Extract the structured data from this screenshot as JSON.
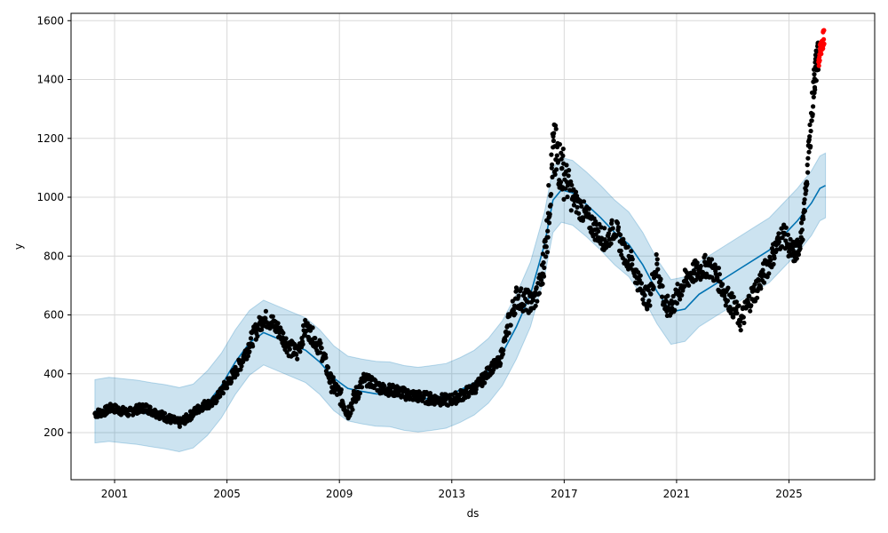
{
  "chart_data": {
    "type": "line",
    "title": "",
    "xlabel": "ds",
    "ylabel": "y",
    "xlim": [
      1999.45,
      2028.05
    ],
    "ylim": [
      40,
      1625
    ],
    "grid": true,
    "x_ticks": [
      {
        "value": 2001,
        "label": "2001"
      },
      {
        "value": 2005,
        "label": "2005"
      },
      {
        "value": 2009,
        "label": "2009"
      },
      {
        "value": 2013,
        "label": "2013"
      },
      {
        "value": 2017,
        "label": "2017"
      },
      {
        "value": 2021,
        "label": "2021"
      },
      {
        "value": 2025,
        "label": "2025"
      }
    ],
    "y_ticks": [
      {
        "value": 200,
        "label": "200"
      },
      {
        "value": 400,
        "label": "400"
      },
      {
        "value": 600,
        "label": "600"
      },
      {
        "value": 800,
        "label": "800"
      },
      {
        "value": 1000,
        "label": "1000"
      },
      {
        "value": 1200,
        "label": "1200"
      },
      {
        "value": 1400,
        "label": "1400"
      },
      {
        "value": 1600,
        "label": "1600"
      }
    ],
    "colors": {
      "observed": "#000000",
      "forecast": "#0072B2",
      "interval": "#0072B2",
      "recent": "#ff0000",
      "grid": "#d9d9d9"
    },
    "series": [
      {
        "role": "forecast",
        "x": [
          2000.3,
          2000.8,
          2001.3,
          2001.8,
          2002.3,
          2002.8,
          2003.3,
          2003.8,
          2004.3,
          2004.8,
          2005.3,
          2005.8,
          2006.3,
          2006.8,
          2007.3,
          2007.8,
          2008.3,
          2008.8,
          2009.3,
          2009.8,
          2010.3,
          2010.8,
          2011.3,
          2011.8,
          2012.3,
          2012.8,
          2013.3,
          2013.8,
          2014.3,
          2014.8,
          2015.3,
          2015.8,
          2016.3,
          2016.6,
          2016.9,
          2017.3,
          2017.8,
          2018.3,
          2018.8,
          2019.3,
          2019.8,
          2020.3,
          2020.8,
          2021.3,
          2021.8,
          2022.3,
          2022.8,
          2023.3,
          2023.8,
          2024.3,
          2024.8,
          2025.3,
          2025.8,
          2026.1,
          2026.3
        ],
        "yhat": [
          272,
          280,
          275,
          270,
          262,
          255,
          245,
          255,
          300,
          360,
          440,
          505,
          540,
          520,
          500,
          480,
          440,
          385,
          350,
          340,
          332,
          330,
          318,
          312,
          318,
          325,
          345,
          370,
          410,
          470,
          560,
          670,
          840,
          990,
          1025,
          1015,
          975,
          930,
          880,
          840,
          770,
          680,
          610,
          620,
          670,
          700,
          730,
          760,
          790,
          820,
          870,
          920,
          980,
          1030,
          1040
        ],
        "lower": [
          165,
          170,
          165,
          160,
          152,
          145,
          135,
          148,
          190,
          250,
          330,
          395,
          430,
          410,
          390,
          370,
          330,
          275,
          240,
          230,
          222,
          220,
          208,
          202,
          208,
          215,
          235,
          260,
          300,
          360,
          450,
          560,
          730,
          880,
          915,
          905,
          865,
          820,
          770,
          730,
          660,
          570,
          500,
          510,
          560,
          590,
          620,
          650,
          680,
          710,
          760,
          810,
          870,
          920,
          930
        ],
        "upper": [
          380,
          388,
          383,
          378,
          370,
          363,
          353,
          365,
          410,
          470,
          550,
          615,
          650,
          630,
          610,
          590,
          550,
          495,
          460,
          450,
          442,
          440,
          428,
          422,
          428,
          435,
          455,
          480,
          520,
          580,
          670,
          780,
          950,
          1100,
          1135,
          1125,
          1085,
          1040,
          990,
          950,
          880,
          790,
          720,
          730,
          780,
          810,
          840,
          870,
          900,
          930,
          980,
          1030,
          1090,
          1140,
          1150
        ]
      },
      {
        "role": "observed",
        "x": [
          2000.3,
          2000.6,
          2000.9,
          2001.2,
          2001.5,
          2001.8,
          2002.1,
          2002.4,
          2002.7,
          2003.0,
          2003.3,
          2003.6,
          2003.9,
          2004.2,
          2004.5,
          2004.8,
          2005.1,
          2005.4,
          2005.7,
          2006.0,
          2006.3,
          2006.6,
          2006.9,
          2007.2,
          2007.5,
          2007.8,
          2008.1,
          2008.4,
          2008.7,
          2009.0,
          2009.3,
          2009.6,
          2009.9,
          2010.2,
          2010.5,
          2010.8,
          2011.1,
          2011.4,
          2011.7,
          2012.0,
          2012.3,
          2012.6,
          2012.9,
          2013.2,
          2013.5,
          2013.8,
          2014.1,
          2014.4,
          2014.7,
          2015.0,
          2015.3,
          2015.6,
          2015.9,
          2016.2,
          2016.4,
          2016.6,
          2016.8,
          2017.0,
          2017.3,
          2017.6,
          2017.9,
          2018.2,
          2018.5,
          2018.8,
          2019.1,
          2019.4,
          2019.7,
          2020.0,
          2020.3,
          2020.6,
          2020.9,
          2021.2,
          2021.5,
          2021.8,
          2022.1,
          2022.4,
          2022.7,
          2023.0,
          2023.3,
          2023.6,
          2023.9,
          2024.2,
          2024.5,
          2024.8,
          2025.1,
          2025.3,
          2025.5,
          2025.7,
          2025.9,
          2026.0
        ],
        "y": [
          265,
          270,
          285,
          275,
          268,
          280,
          285,
          270,
          258,
          245,
          232,
          250,
          275,
          295,
          300,
          340,
          380,
          420,
          480,
          540,
          590,
          575,
          540,
          490,
          470,
          560,
          520,
          470,
          370,
          330,
          270,
          330,
          380,
          370,
          350,
          345,
          340,
          330,
          325,
          320,
          315,
          312,
          310,
          320,
          335,
          350,
          380,
          420,
          440,
          560,
          660,
          650,
          640,
          720,
          900,
          1150,
          1120,
          1080,
          1000,
          960,
          920,
          880,
          850,
          900,
          820,
          780,
          700,
          650,
          780,
          620,
          640,
          700,
          740,
          750,
          770,
          740,
          680,
          630,
          580,
          650,
          700,
          760,
          820,
          880,
          810,
          820,
          900,
          1150,
          1400,
          1470
        ],
        "amplitude": [
          15,
          15,
          15,
          15,
          15,
          15,
          15,
          15,
          15,
          15,
          15,
          15,
          15,
          15,
          15,
          20,
          20,
          25,
          30,
          30,
          30,
          30,
          30,
          30,
          30,
          30,
          30,
          30,
          30,
          30,
          30,
          30,
          20,
          20,
          20,
          20,
          20,
          20,
          20,
          20,
          20,
          20,
          20,
          20,
          20,
          20,
          20,
          20,
          20,
          40,
          40,
          40,
          40,
          60,
          90,
          110,
          90,
          60,
          40,
          40,
          40,
          40,
          40,
          40,
          40,
          40,
          40,
          40,
          40,
          40,
          40,
          40,
          40,
          40,
          40,
          40,
          40,
          40,
          40,
          40,
          40,
          40,
          40,
          40,
          40,
          40,
          40,
          60,
          60,
          60
        ]
      },
      {
        "role": "recent",
        "x": [
          2026.05,
          2026.08,
          2026.11,
          2026.14,
          2026.17,
          2026.2,
          2026.23
        ],
        "y": [
          1460,
          1480,
          1500,
          1510,
          1520,
          1530,
          1540
        ],
        "amplitude": [
          30,
          30,
          30,
          30,
          30,
          30,
          30
        ]
      }
    ]
  }
}
